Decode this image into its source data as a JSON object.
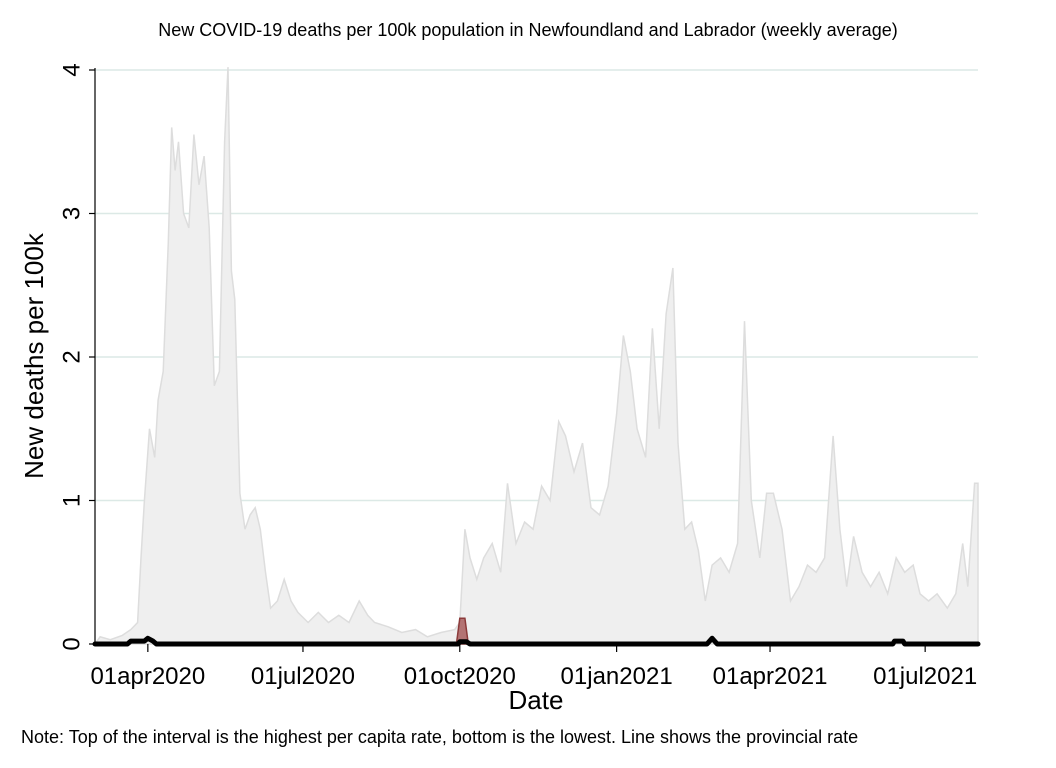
{
  "chart_data": {
    "type": "area",
    "title": "New COVID-19 deaths per 100k population in Newfoundland and Labrador (weekly average)",
    "xlabel": "Date",
    "ylabel": "New deaths per 100k",
    "note": "Note: Top of the interval is the highest per capita rate, bottom is the lowest. Line shows the provincial rate",
    "xlim": [
      "2020-03-01",
      "2021-08-01"
    ],
    "ylim": [
      0,
      4
    ],
    "y_ticks": [
      0,
      1,
      2,
      3,
      4
    ],
    "x_ticks": [
      {
        "date": "2020-04-01",
        "label": "01apr2020"
      },
      {
        "date": "2020-07-01",
        "label": "01jul2020"
      },
      {
        "date": "2020-10-01",
        "label": "01oct2020"
      },
      {
        "date": "2021-01-01",
        "label": "01jan2021"
      },
      {
        "date": "2021-04-01",
        "label": "01apr2021"
      },
      {
        "date": "2021-07-01",
        "label": "01jul2021"
      }
    ],
    "grid": true,
    "colors": {
      "band_fill": "#efefef",
      "band_stroke": "#dddddd",
      "province_fill": "#b37373",
      "province_stroke": "#8b3a3a",
      "line": "#000000",
      "grid": "#dce9e6"
    },
    "series": [
      {
        "kind": "band",
        "points": [
          [
            "2020-03-01",
            0
          ],
          [
            "2020-03-04",
            0.05
          ],
          [
            "2020-03-10",
            0.03
          ],
          [
            "2020-03-17",
            0.06
          ],
          [
            "2020-03-22",
            0.1
          ],
          [
            "2020-03-26",
            0.15
          ],
          [
            "2020-03-28",
            0.6
          ],
          [
            "2020-03-30",
            1.0
          ],
          [
            "2020-04-02",
            1.5
          ],
          [
            "2020-04-05",
            1.3
          ],
          [
            "2020-04-07",
            1.7
          ],
          [
            "2020-04-10",
            1.9
          ],
          [
            "2020-04-13",
            2.8
          ],
          [
            "2020-04-15",
            3.6
          ],
          [
            "2020-04-17",
            3.3
          ],
          [
            "2020-04-19",
            3.5
          ],
          [
            "2020-04-22",
            3.0
          ],
          [
            "2020-04-25",
            2.9
          ],
          [
            "2020-04-28",
            3.55
          ],
          [
            "2020-05-01",
            3.2
          ],
          [
            "2020-05-04",
            3.4
          ],
          [
            "2020-05-07",
            2.9
          ],
          [
            "2020-05-10",
            1.8
          ],
          [
            "2020-05-13",
            1.9
          ],
          [
            "2020-05-16",
            3.5
          ],
          [
            "2020-05-18",
            4.02
          ],
          [
            "2020-05-20",
            2.6
          ],
          [
            "2020-05-22",
            2.4
          ],
          [
            "2020-05-25",
            1.05
          ],
          [
            "2020-05-28",
            0.8
          ],
          [
            "2020-05-31",
            0.9
          ],
          [
            "2020-06-03",
            0.95
          ],
          [
            "2020-06-06",
            0.8
          ],
          [
            "2020-06-09",
            0.5
          ],
          [
            "2020-06-12",
            0.25
          ],
          [
            "2020-06-16",
            0.3
          ],
          [
            "2020-06-20",
            0.45
          ],
          [
            "2020-06-24",
            0.3
          ],
          [
            "2020-06-28",
            0.22
          ],
          [
            "2020-07-04",
            0.15
          ],
          [
            "2020-07-10",
            0.22
          ],
          [
            "2020-07-16",
            0.15
          ],
          [
            "2020-07-22",
            0.2
          ],
          [
            "2020-07-28",
            0.15
          ],
          [
            "2020-08-03",
            0.3
          ],
          [
            "2020-08-08",
            0.2
          ],
          [
            "2020-08-12",
            0.15
          ],
          [
            "2020-08-20",
            0.12
          ],
          [
            "2020-08-28",
            0.08
          ],
          [
            "2020-09-05",
            0.1
          ],
          [
            "2020-09-12",
            0.05
          ],
          [
            "2020-09-20",
            0.08
          ],
          [
            "2020-09-28",
            0.1
          ],
          [
            "2020-10-01",
            0.15
          ],
          [
            "2020-10-04",
            0.8
          ],
          [
            "2020-10-07",
            0.6
          ],
          [
            "2020-10-11",
            0.45
          ],
          [
            "2020-10-15",
            0.6
          ],
          [
            "2020-10-20",
            0.7
          ],
          [
            "2020-10-25",
            0.5
          ],
          [
            "2020-10-29",
            1.12
          ],
          [
            "2020-11-03",
            0.7
          ],
          [
            "2020-11-08",
            0.85
          ],
          [
            "2020-11-13",
            0.8
          ],
          [
            "2020-11-18",
            1.1
          ],
          [
            "2020-11-23",
            1.0
          ],
          [
            "2020-11-28",
            1.55
          ],
          [
            "2020-12-02",
            1.45
          ],
          [
            "2020-12-07",
            1.2
          ],
          [
            "2020-12-12",
            1.4
          ],
          [
            "2020-12-17",
            0.95
          ],
          [
            "2020-12-22",
            0.9
          ],
          [
            "2020-12-27",
            1.1
          ],
          [
            "2021-01-01",
            1.6
          ],
          [
            "2021-01-05",
            2.15
          ],
          [
            "2021-01-09",
            1.9
          ],
          [
            "2021-01-13",
            1.5
          ],
          [
            "2021-01-18",
            1.3
          ],
          [
            "2021-01-22",
            2.2
          ],
          [
            "2021-01-26",
            1.5
          ],
          [
            "2021-01-30",
            2.3
          ],
          [
            "2021-02-03",
            2.62
          ],
          [
            "2021-02-06",
            1.4
          ],
          [
            "2021-02-10",
            0.8
          ],
          [
            "2021-02-14",
            0.85
          ],
          [
            "2021-02-18",
            0.65
          ],
          [
            "2021-02-22",
            0.3
          ],
          [
            "2021-02-26",
            0.55
          ],
          [
            "2021-03-03",
            0.6
          ],
          [
            "2021-03-08",
            0.5
          ],
          [
            "2021-03-13",
            0.7
          ],
          [
            "2021-03-17",
            2.25
          ],
          [
            "2021-03-21",
            1.0
          ],
          [
            "2021-03-26",
            0.6
          ],
          [
            "2021-03-30",
            1.05
          ],
          [
            "2021-04-03",
            1.05
          ],
          [
            "2021-04-08",
            0.8
          ],
          [
            "2021-04-13",
            0.3
          ],
          [
            "2021-04-18",
            0.4
          ],
          [
            "2021-04-23",
            0.55
          ],
          [
            "2021-04-28",
            0.5
          ],
          [
            "2021-05-03",
            0.6
          ],
          [
            "2021-05-08",
            1.45
          ],
          [
            "2021-05-12",
            0.8
          ],
          [
            "2021-05-16",
            0.4
          ],
          [
            "2021-05-20",
            0.75
          ],
          [
            "2021-05-25",
            0.5
          ],
          [
            "2021-05-30",
            0.4
          ],
          [
            "2021-06-04",
            0.5
          ],
          [
            "2021-06-09",
            0.35
          ],
          [
            "2021-06-14",
            0.6
          ],
          [
            "2021-06-19",
            0.5
          ],
          [
            "2021-06-24",
            0.55
          ],
          [
            "2021-06-28",
            0.35
          ],
          [
            "2021-07-03",
            0.3
          ],
          [
            "2021-07-08",
            0.35
          ],
          [
            "2021-07-14",
            0.25
          ],
          [
            "2021-07-19",
            0.35
          ],
          [
            "2021-07-23",
            0.7
          ],
          [
            "2021-07-26",
            0.4
          ],
          [
            "2021-07-30",
            1.12
          ],
          [
            "2021-08-01",
            1.12
          ],
          [
            "2021-08-01",
            0
          ]
        ]
      },
      {
        "kind": "province",
        "points": [
          [
            "2020-09-29",
            0
          ],
          [
            "2020-10-01",
            0.18
          ],
          [
            "2020-10-04",
            0.18
          ],
          [
            "2020-10-06",
            0
          ]
        ]
      },
      {
        "kind": "line",
        "points": [
          [
            "2020-03-01",
            0
          ],
          [
            "2020-03-20",
            0
          ],
          [
            "2020-03-22",
            0.02
          ],
          [
            "2020-03-30",
            0.02
          ],
          [
            "2020-04-01",
            0.04
          ],
          [
            "2020-04-04",
            0.02
          ],
          [
            "2020-04-06",
            0
          ],
          [
            "2020-09-30",
            0
          ],
          [
            "2020-10-01",
            0.015
          ],
          [
            "2020-10-05",
            0.015
          ],
          [
            "2020-10-07",
            0
          ],
          [
            "2021-02-23",
            0
          ],
          [
            "2021-02-26",
            0.04
          ],
          [
            "2021-03-01",
            0
          ],
          [
            "2021-06-12",
            0
          ],
          [
            "2021-06-13",
            0.02
          ],
          [
            "2021-06-18",
            0.02
          ],
          [
            "2021-06-19",
            0
          ],
          [
            "2021-08-01",
            0
          ]
        ]
      }
    ]
  }
}
